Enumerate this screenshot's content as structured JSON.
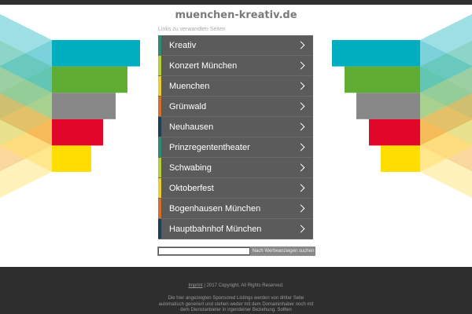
{
  "title": "muenchen-kreativ.de",
  "related_label": "Links zu verwandten Seiten",
  "menu": [
    {
      "label": "Kreativ",
      "color": "#2e8b7a"
    },
    {
      "label": "Konzert München",
      "color": "#b8cc3a"
    },
    {
      "label": "Muenchen",
      "color": "#e8cf2a"
    },
    {
      "label": "Grünwald",
      "color": "#d0702a"
    },
    {
      "label": "Neuhausen",
      "color": "#1c3f55"
    },
    {
      "label": "Prinzregententheater",
      "color": "#2e8b7a"
    },
    {
      "label": "Schwabing",
      "color": "#b8cc3a"
    },
    {
      "label": "Oktoberfest",
      "color": "#e8cf2a"
    },
    {
      "label": "Bogenhausen München",
      "color": "#d0702a"
    },
    {
      "label": "Hauptbahnhof München",
      "color": "#1c3f55"
    }
  ],
  "search": {
    "value": "",
    "button": "Nach Werbeanzeigen suchen"
  },
  "footer": {
    "imprint": "Imprint",
    "copyright": " | 2017 Copyright. All Rights Reserved.",
    "disclaimer": "Die hier angezeigten Sponsored Listings werden von dritter Seite automatisch generiert und stehen weder mit dem Domaininhaber noch mit dem Dienstanbieter in irgendeiner Beziehung. Sollten"
  },
  "bar_colors": [
    "#00aebf",
    "#5fae33",
    "#878787",
    "#e0062a",
    "#ffdd00"
  ],
  "fan_colors": [
    "#4fc3cf",
    "#2fb39a",
    "#8cc06a",
    "#d14a63",
    "#f5a623",
    "#ffe066"
  ]
}
